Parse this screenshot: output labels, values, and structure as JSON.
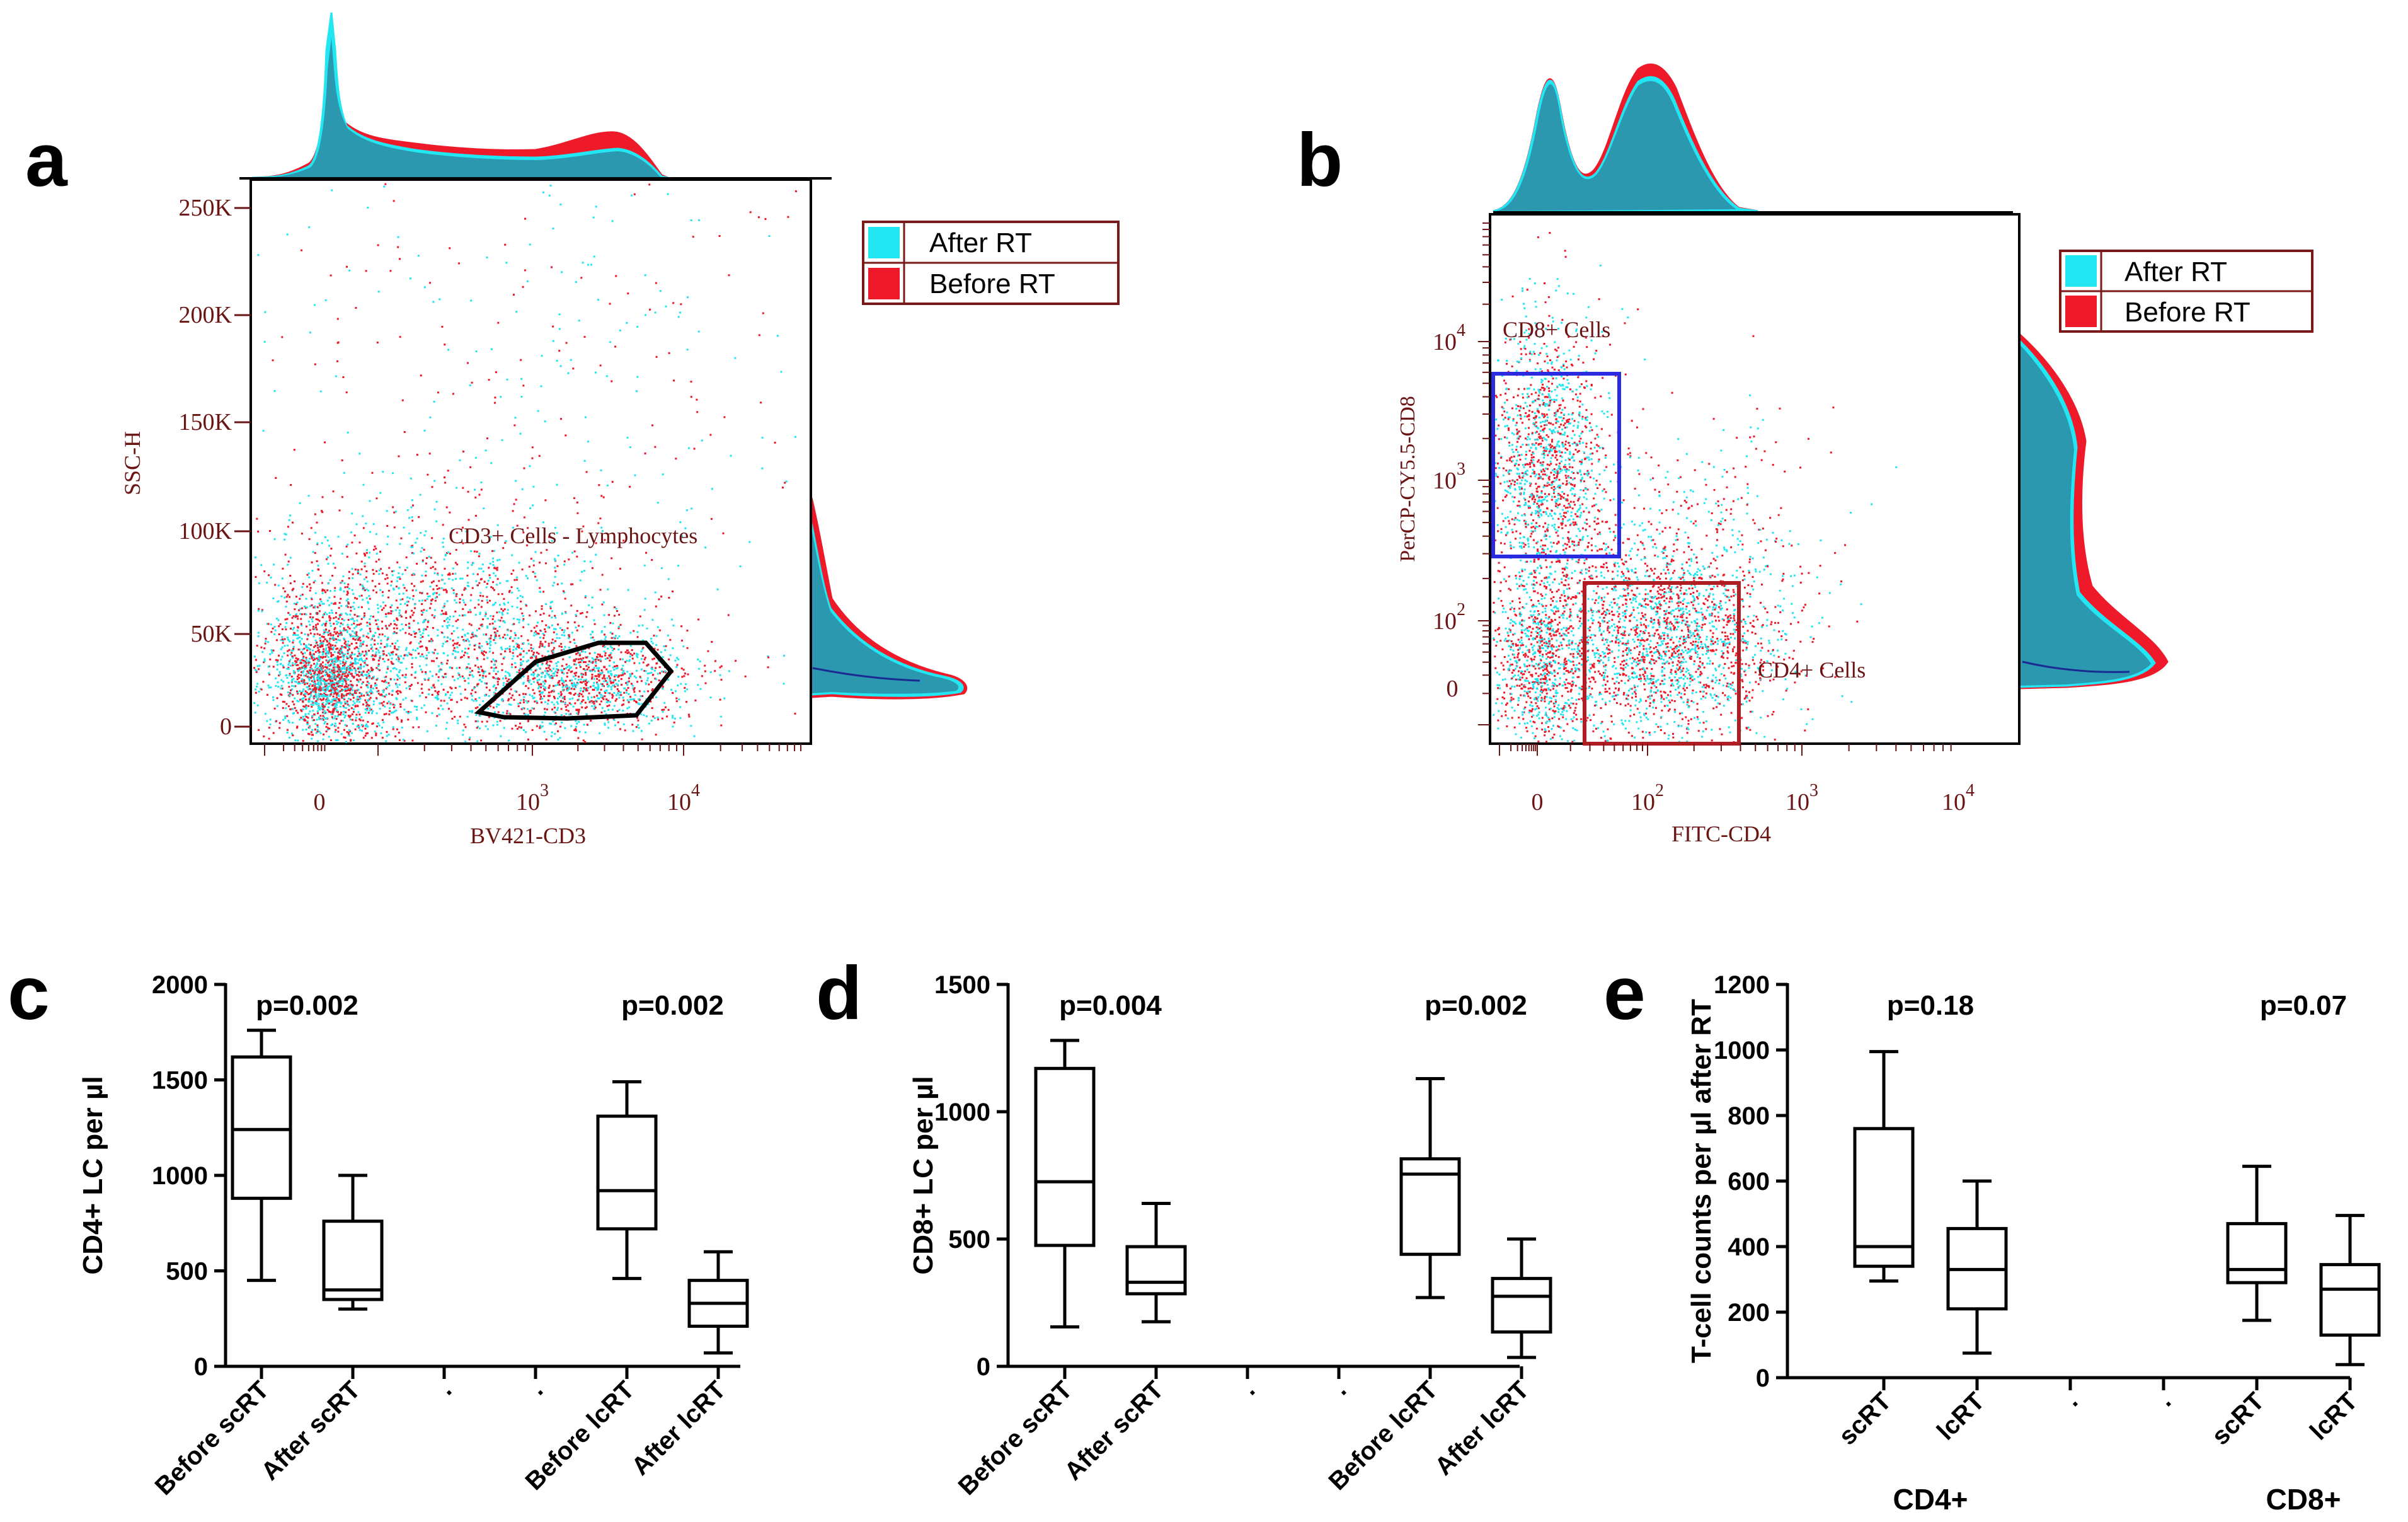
{
  "colors": {
    "after": "#22e6f2",
    "before": "#ee1a2a",
    "overlap": "#2b98b0",
    "axis_label": "#6b1414",
    "gate_blue": "#2a2ae0",
    "gate_red": "#b01e24",
    "black": "#000000"
  },
  "panels": {
    "a": {
      "letter": "a",
      "ylabel": "SSC-H",
      "xlabel": "BV421-CD3",
      "yticks": [
        "0",
        "50K",
        "100K",
        "150K",
        "200K",
        "250K"
      ],
      "xticks": [
        {
          "base": "0",
          "exp": ""
        },
        {
          "base": "10",
          "exp": "3"
        },
        {
          "base": "10",
          "exp": "4"
        }
      ],
      "gate_label": "CD3+ Cells - Lymphocytes",
      "legend": [
        "After RT",
        "Before RT"
      ]
    },
    "b": {
      "letter": "b",
      "ylabel": "PerCP-CY5.5-CD8",
      "xlabel": "FITC-CD4",
      "yticks": [
        {
          "base": "0",
          "exp": ""
        },
        {
          "base": "10",
          "exp": "2"
        },
        {
          "base": "10",
          "exp": "3"
        },
        {
          "base": "10",
          "exp": "4"
        }
      ],
      "xticks": [
        {
          "base": "0",
          "exp": ""
        },
        {
          "base": "10",
          "exp": "2"
        },
        {
          "base": "10",
          "exp": "3"
        },
        {
          "base": "10",
          "exp": "4"
        }
      ],
      "gate_cd8": "CD8+ Cells",
      "gate_cd4": "CD4+ Cells",
      "legend": [
        "After RT",
        "Before RT"
      ]
    }
  },
  "chart_data": [
    {
      "id": "c",
      "type": "box",
      "panel_letter": "c",
      "ylabel": "CD4+ LC per µl",
      "ylim": [
        0,
        2000
      ],
      "yticks": [
        0,
        500,
        1000,
        1500,
        2000
      ],
      "categories": [
        "Before scRT",
        "After scRT",
        ".",
        ".",
        "Before lcRT",
        "After lcRT"
      ],
      "boxes": [
        {
          "category": "Before scRT",
          "min": 450,
          "q1": 880,
          "median": 1240,
          "q3": 1620,
          "max": 1760
        },
        {
          "category": "After scRT",
          "min": 300,
          "q1": 350,
          "median": 400,
          "q3": 760,
          "max": 1000
        },
        {
          "category": "Before lcRT",
          "min": 460,
          "q1": 720,
          "median": 920,
          "q3": 1310,
          "max": 1490
        },
        {
          "category": "After lcRT",
          "min": 70,
          "q1": 210,
          "median": 330,
          "q3": 450,
          "max": 600
        }
      ],
      "pvalues": [
        {
          "text": "p=0.002",
          "between": [
            0,
            1
          ]
        },
        {
          "text": "p=0.002",
          "between": [
            4,
            5
          ]
        }
      ]
    },
    {
      "id": "d",
      "type": "box",
      "panel_letter": "d",
      "ylabel": "CD8+ LC per µl",
      "ylim": [
        0,
        1500
      ],
      "yticks": [
        0,
        500,
        1000,
        1500
      ],
      "categories": [
        "Before scRT",
        "After scRT",
        ".",
        ".",
        "Before lcRT",
        "After lcRT"
      ],
      "boxes": [
        {
          "category": "Before scRT",
          "min": 155,
          "q1": 475,
          "median": 725,
          "q3": 1170,
          "max": 1280
        },
        {
          "category": "After scRT",
          "min": 175,
          "q1": 285,
          "median": 330,
          "q3": 470,
          "max": 640
        },
        {
          "category": "Before lcRT",
          "min": 270,
          "q1": 440,
          "median": 755,
          "q3": 815,
          "max": 1130
        },
        {
          "category": "After lcRT",
          "min": 35,
          "q1": 135,
          "median": 275,
          "q3": 345,
          "max": 500
        }
      ],
      "pvalues": [
        {
          "text": "p=0.004",
          "between": [
            0,
            1
          ]
        },
        {
          "text": "p=0.002",
          "between": [
            4,
            5
          ]
        }
      ]
    },
    {
      "id": "e",
      "type": "box",
      "panel_letter": "e",
      "ylabel": "T-cell counts per µl after RT",
      "ylim": [
        0,
        1200
      ],
      "yticks": [
        0,
        200,
        400,
        600,
        800,
        1000,
        1200
      ],
      "categories": [
        "scRT",
        "lcRT",
        ".",
        ".",
        "scRT",
        "lcRT"
      ],
      "groups": [
        "CD4+",
        "CD8+"
      ],
      "boxes": [
        {
          "category": "scRT",
          "group": "CD4+",
          "min": 295,
          "q1": 340,
          "median": 400,
          "q3": 760,
          "max": 995
        },
        {
          "category": "lcRT",
          "group": "CD4+",
          "min": 75,
          "q1": 210,
          "median": 330,
          "q3": 455,
          "max": 600
        },
        {
          "category": "scRT",
          "group": "CD8+",
          "min": 175,
          "q1": 290,
          "median": 330,
          "q3": 470,
          "max": 645
        },
        {
          "category": "lcRT",
          "group": "CD8+",
          "min": 40,
          "q1": 130,
          "median": 270,
          "q3": 345,
          "max": 495
        }
      ],
      "pvalues": [
        {
          "text": "p=0.18",
          "between": [
            0,
            1
          ]
        },
        {
          "text": "p=0.07",
          "between": [
            4,
            5
          ]
        }
      ]
    }
  ]
}
